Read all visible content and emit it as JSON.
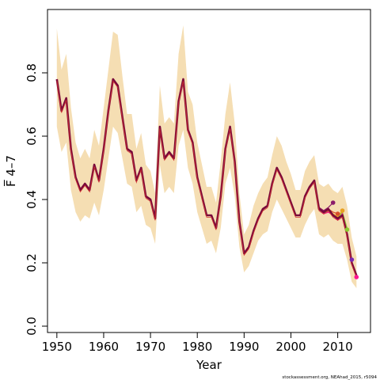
{
  "chart_data": {
    "type": "line",
    "title": "",
    "xlabel": "Year",
    "ylabel": "F̅ 4–7",
    "xlim": [
      1948,
      2017
    ],
    "ylim": [
      -0.02,
      1.0
    ],
    "xticks": [
      1950,
      1960,
      1970,
      1980,
      1990,
      2000,
      2010
    ],
    "yticks": [
      0.0,
      0.2,
      0.4,
      0.6,
      0.8
    ],
    "ytick_labels": [
      "0.0",
      "0.2",
      "0.4",
      "0.6",
      "0.8"
    ],
    "grid": false,
    "legend": "none",
    "band_color": "#f5deb3",
    "main": {
      "color": "#7a0a3a",
      "x": [
        1950,
        1951,
        1952,
        1953,
        1954,
        1955,
        1956,
        1957,
        1958,
        1959,
        1960,
        1961,
        1962,
        1963,
        1964,
        1965,
        1966,
        1967,
        1968,
        1969,
        1970,
        1971,
        1972,
        1973,
        1974,
        1975,
        1976,
        1977,
        1978,
        1979,
        1980,
        1981,
        1982,
        1983,
        1984,
        1985,
        1986,
        1987,
        1988,
        1989,
        1990,
        1991,
        1992,
        1993,
        1994,
        1995,
        1996,
        1997,
        1998,
        1999,
        2000,
        2001,
        2002,
        2003,
        2004,
        2005,
        2006,
        2007,
        2008,
        2009,
        2010,
        2011,
        2012,
        2013,
        2014
      ],
      "y": [
        0.78,
        0.68,
        0.72,
        0.56,
        0.47,
        0.43,
        0.45,
        0.43,
        0.51,
        0.46,
        0.56,
        0.68,
        0.78,
        0.76,
        0.66,
        0.56,
        0.55,
        0.46,
        0.5,
        0.41,
        0.4,
        0.34,
        0.63,
        0.53,
        0.55,
        0.53,
        0.71,
        0.78,
        0.62,
        0.58,
        0.47,
        0.41,
        0.35,
        0.35,
        0.31,
        0.41,
        0.56,
        0.63,
        0.52,
        0.33,
        0.23,
        0.25,
        0.3,
        0.34,
        0.37,
        0.38,
        0.45,
        0.5,
        0.47,
        0.43,
        0.39,
        0.35,
        0.35,
        0.41,
        0.44,
        0.46,
        0.37,
        0.36,
        0.37,
        0.35,
        0.34,
        0.35,
        0.29,
        0.2,
        0.16
      ],
      "lower": [
        0.63,
        0.55,
        0.58,
        0.43,
        0.36,
        0.33,
        0.35,
        0.34,
        0.39,
        0.35,
        0.43,
        0.53,
        0.63,
        0.61,
        0.53,
        0.45,
        0.44,
        0.36,
        0.38,
        0.32,
        0.31,
        0.26,
        0.51,
        0.42,
        0.44,
        0.42,
        0.57,
        0.62,
        0.5,
        0.45,
        0.36,
        0.31,
        0.26,
        0.27,
        0.23,
        0.31,
        0.45,
        0.5,
        0.41,
        0.25,
        0.17,
        0.19,
        0.23,
        0.27,
        0.29,
        0.3,
        0.36,
        0.4,
        0.37,
        0.34,
        0.31,
        0.28,
        0.28,
        0.32,
        0.35,
        0.37,
        0.29,
        0.28,
        0.29,
        0.27,
        0.26,
        0.26,
        0.21,
        0.14,
        0.12
      ],
      "upper": [
        0.94,
        0.81,
        0.86,
        0.69,
        0.58,
        0.53,
        0.56,
        0.53,
        0.62,
        0.57,
        0.69,
        0.81,
        0.93,
        0.92,
        0.79,
        0.67,
        0.67,
        0.56,
        0.61,
        0.51,
        0.49,
        0.42,
        0.76,
        0.64,
        0.66,
        0.64,
        0.86,
        0.95,
        0.74,
        0.7,
        0.58,
        0.51,
        0.44,
        0.44,
        0.39,
        0.52,
        0.67,
        0.77,
        0.64,
        0.42,
        0.29,
        0.32,
        0.38,
        0.42,
        0.45,
        0.47,
        0.54,
        0.6,
        0.57,
        0.52,
        0.48,
        0.43,
        0.43,
        0.49,
        0.52,
        0.54,
        0.45,
        0.44,
        0.45,
        0.43,
        0.42,
        0.44,
        0.38,
        0.28,
        0.22
      ]
    },
    "retro_runs": [
      {
        "color": "#8b1a6a",
        "x": [
          2005,
          2006,
          2007,
          2008,
          2009
        ],
        "y": [
          0.455,
          0.375,
          0.365,
          0.375,
          0.39
        ]
      },
      {
        "color": "#d94f2a",
        "x": [
          2005,
          2006,
          2007,
          2008,
          2009,
          2010
        ],
        "y": [
          0.455,
          0.372,
          0.36,
          0.37,
          0.36,
          0.355
        ]
      },
      {
        "color": "#e8a020",
        "x": [
          2005,
          2006,
          2007,
          2008,
          2009,
          2010,
          2011
        ],
        "y": [
          0.455,
          0.37,
          0.358,
          0.365,
          0.355,
          0.345,
          0.365
        ]
      },
      {
        "color": "#8ccc30",
        "x": [
          2005,
          2006,
          2007,
          2008,
          2009,
          2010,
          2011,
          2012
        ],
        "y": [
          0.455,
          0.37,
          0.357,
          0.362,
          0.352,
          0.34,
          0.36,
          0.31
        ]
      },
      {
        "color": "#7a2ab0",
        "x": [
          2005,
          2006,
          2007,
          2008,
          2009,
          2010,
          2011,
          2012,
          2013
        ],
        "y": [
          0.455,
          0.37,
          0.356,
          0.36,
          0.35,
          0.335,
          0.355,
          0.285,
          0.21
        ]
      },
      {
        "color": "#ff1493",
        "x": [
          2005,
          2006,
          2007,
          2008,
          2009,
          2010,
          2011,
          2012,
          2013,
          2014
        ],
        "y": [
          0.455,
          0.37,
          0.355,
          0.36,
          0.35,
          0.335,
          0.355,
          0.285,
          0.205,
          0.155
        ]
      }
    ],
    "endpoints": [
      {
        "color": "#8b1a6a",
        "x": 2009,
        "y": 0.39
      },
      {
        "color": "#d94f2a",
        "x": 2010,
        "y": 0.355
      },
      {
        "color": "#e8a020",
        "x": 2011,
        "y": 0.365
      },
      {
        "color": "#8ccc30",
        "x": 2012,
        "y": 0.305
      },
      {
        "color": "#7a2ab0",
        "x": 2013,
        "y": 0.21
      },
      {
        "color": "#ff1493",
        "x": 2014,
        "y": 0.155
      }
    ]
  },
  "footer": {
    "credit": "stockassessment.org, NEAhad_2015, r5094"
  }
}
